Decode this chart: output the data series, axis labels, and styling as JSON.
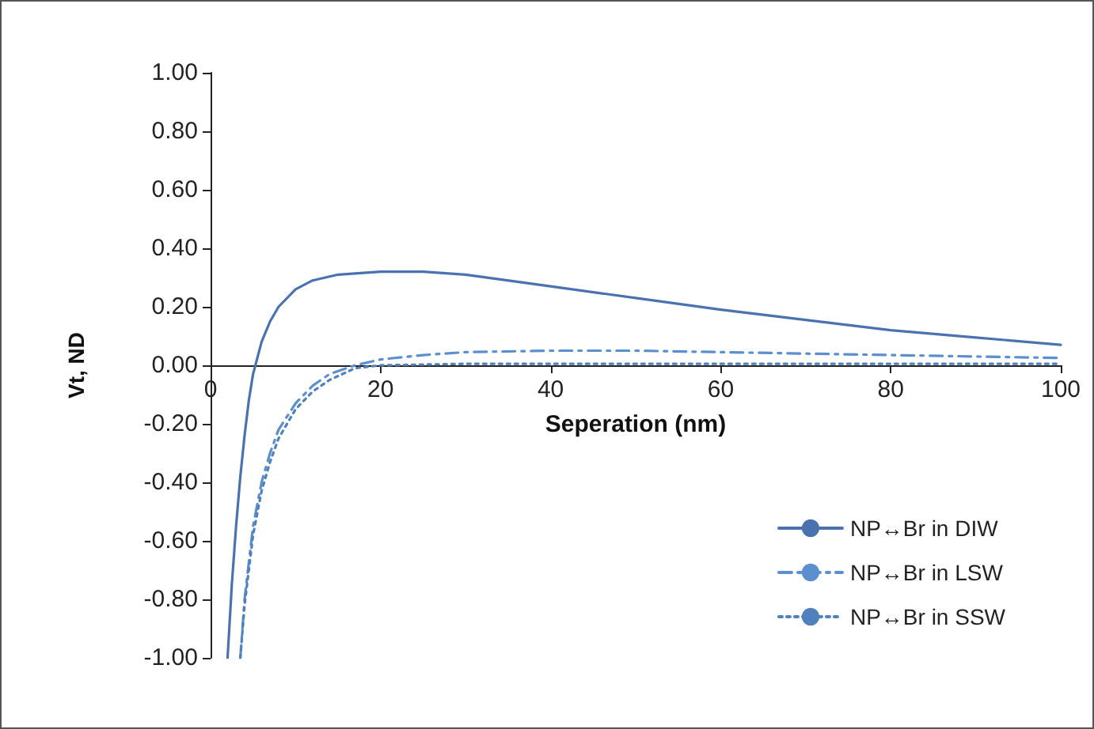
{
  "chart_data": {
    "type": "line",
    "xlabel": "Seperation (nm)",
    "ylabel": "Vt, ND",
    "xlim": [
      0,
      100
    ],
    "xticks": [
      0,
      20,
      40,
      60,
      80,
      100
    ],
    "ylim": [
      -1,
      1
    ],
    "yticks": [
      {
        "value": -1,
        "label": "-1.00"
      },
      {
        "value": -0.8,
        "label": "-0.80"
      },
      {
        "value": -0.6,
        "label": "-0.60"
      },
      {
        "value": -0.4,
        "label": "-0.40"
      },
      {
        "value": -0.2,
        "label": "-0.20"
      },
      {
        "value": 0,
        "label": "0.00"
      },
      {
        "value": 0.2,
        "label": "0.20"
      },
      {
        "value": 0.4,
        "label": "0.40"
      },
      {
        "value": 0.6,
        "label": "0.60"
      },
      {
        "value": 0.8,
        "label": "0.80"
      },
      {
        "value": 1,
        "label": "1.00"
      }
    ],
    "grid": false,
    "legend": "bottom right",
    "marker": "none",
    "series": [
      {
        "name": "NP↔Br in DIW",
        "color": "#4a72b0",
        "line_style": "solid",
        "x": [
          2,
          2.5,
          3,
          3.5,
          4,
          4.5,
          5,
          6,
          7,
          8,
          10,
          12,
          15,
          20,
          25,
          30,
          40,
          50,
          60,
          70,
          80,
          90,
          100
        ],
        "values": [
          -1,
          -0.75,
          -0.55,
          -0.38,
          -0.24,
          -0.12,
          -0.03,
          0.08,
          0.15,
          0.2,
          0.26,
          0.29,
          0.31,
          0.32,
          0.32,
          0.31,
          0.27,
          0.23,
          0.19,
          0.155,
          0.12,
          0.095,
          0.07
        ]
      },
      {
        "name": "NP↔Br in LSW",
        "color": "#5b8fcf",
        "line_style": "dashed",
        "x": [
          3.5,
          4,
          5,
          6,
          7,
          8,
          10,
          12,
          14,
          17,
          20,
          25,
          30,
          40,
          50,
          60,
          70,
          80,
          90,
          100
        ],
        "values": [
          -1,
          -0.8,
          -0.55,
          -0.4,
          -0.3,
          -0.22,
          -0.13,
          -0.07,
          -0.03,
          0,
          0.02,
          0.035,
          0.045,
          0.05,
          0.05,
          0.045,
          0.04,
          0.035,
          0.03,
          0.025
        ]
      },
      {
        "name": "NP↔Br in SSW",
        "color": "#4f81bd",
        "line_style": "dotted",
        "x": [
          3.5,
          4,
          5,
          6,
          7,
          8,
          10,
          12,
          14,
          17,
          20,
          30,
          40,
          60,
          80,
          100
        ],
        "values": [
          -1,
          -0.82,
          -0.58,
          -0.43,
          -0.33,
          -0.25,
          -0.15,
          -0.09,
          -0.05,
          -0.01,
          0,
          0.005,
          0.005,
          0.005,
          0.005,
          0.005
        ]
      }
    ]
  }
}
